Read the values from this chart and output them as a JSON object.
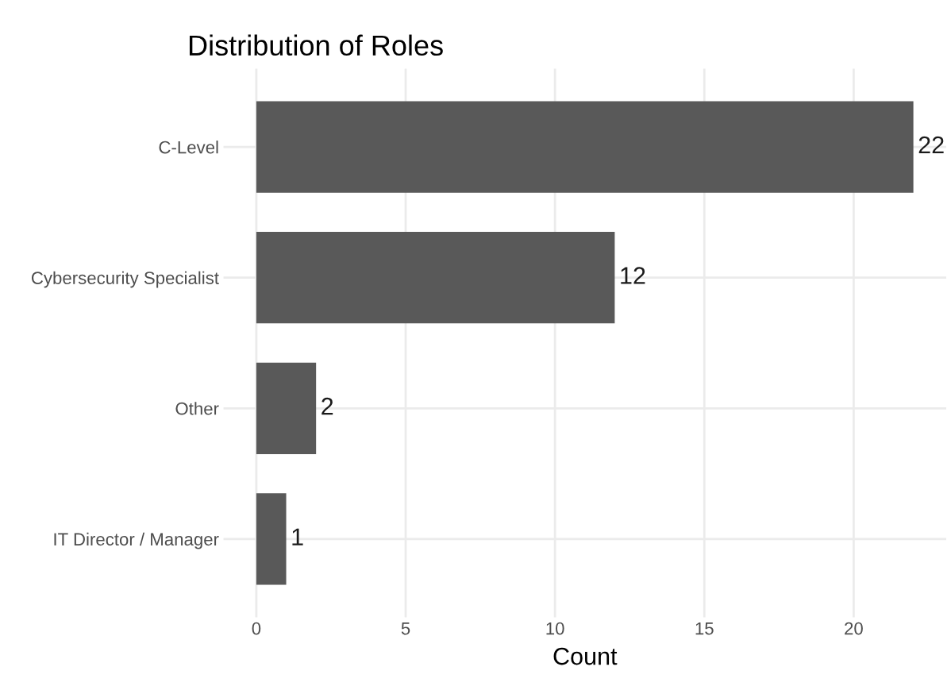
{
  "chart_data": {
    "type": "bar",
    "orientation": "horizontal",
    "title": "Distribution of Roles",
    "xlabel": "Count",
    "categories": [
      "C-Level",
      "Cybersecurity Specialist",
      "Other",
      "IT Director / Manager"
    ],
    "values": [
      22,
      12,
      2,
      1
    ],
    "color": "#595959",
    "data_labels": true,
    "xlim": [
      -1.1,
      23.1
    ],
    "xticks": [
      0,
      5,
      10,
      15,
      20
    ],
    "grid": true,
    "legend": false
  }
}
